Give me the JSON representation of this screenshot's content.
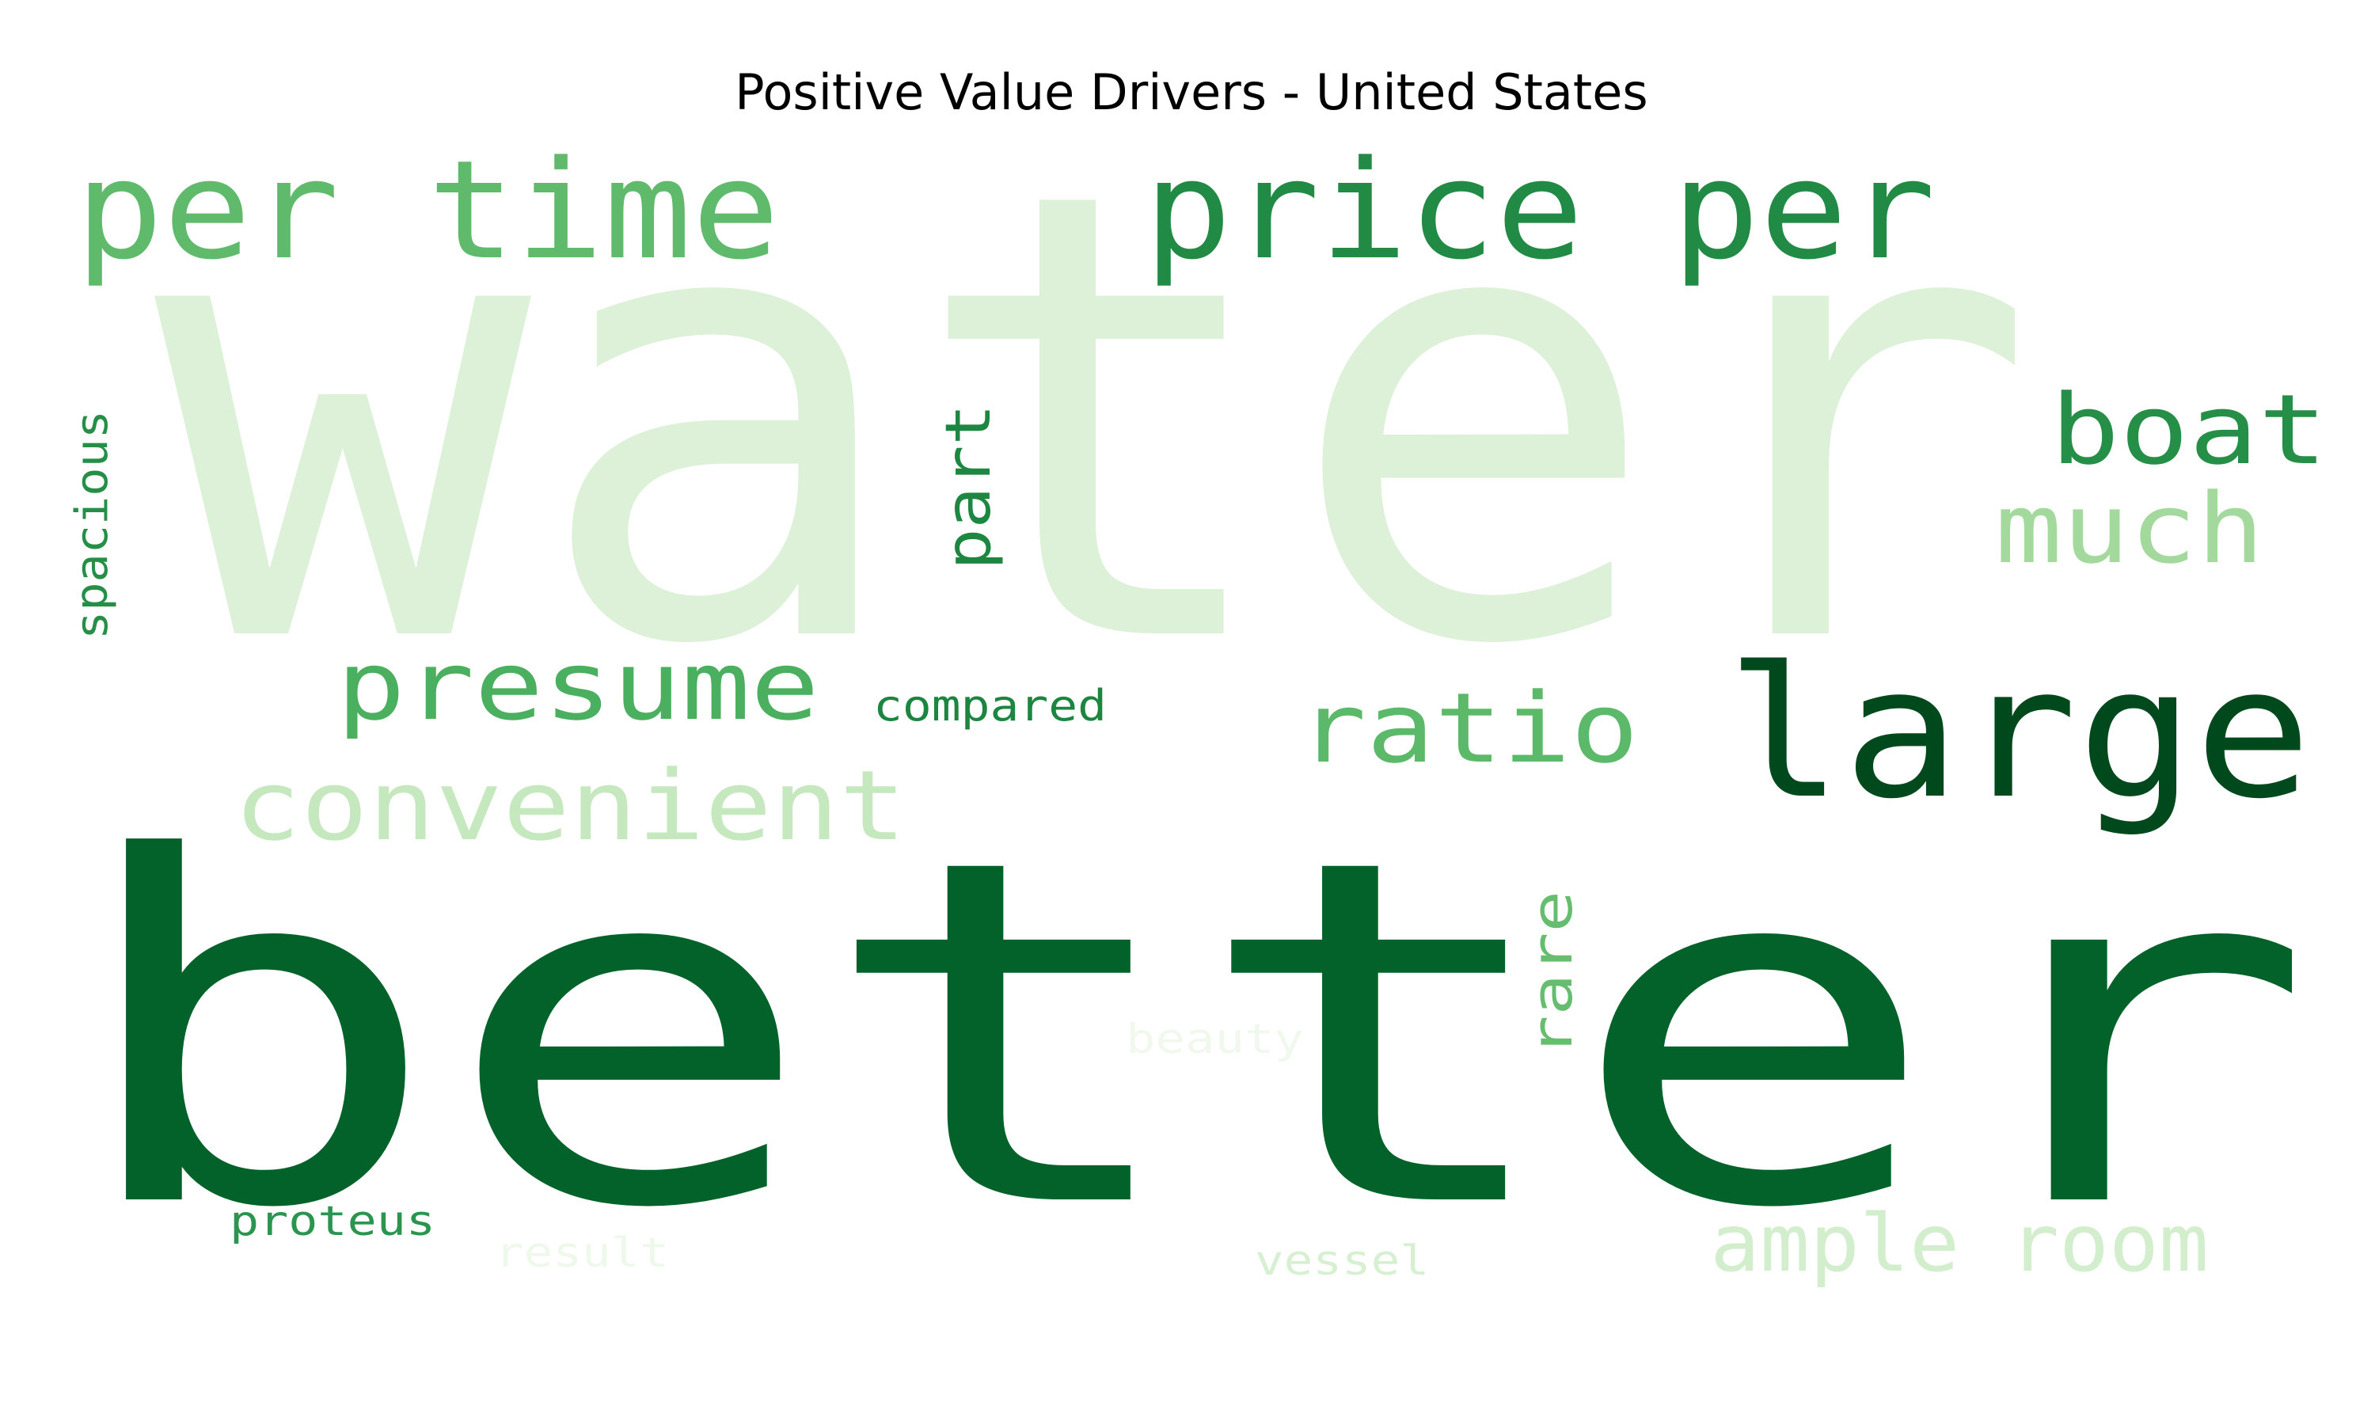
{
  "chart_data": {
    "type": "wordcloud",
    "title": "Positive Value Drivers - United States",
    "words": [
      {
        "text": "water",
        "color": "#dcf1d7"
      },
      {
        "text": "better",
        "color": "#03612a"
      },
      {
        "text": "per time",
        "color": "#60ba6c"
      },
      {
        "text": "price per",
        "color": "#218b45"
      },
      {
        "text": "large",
        "color": "#00491d"
      },
      {
        "text": "boat",
        "color": "#258e47"
      },
      {
        "text": "much",
        "color": "#a3d99c"
      },
      {
        "text": "presume",
        "color": "#4aaf5e"
      },
      {
        "text": "convenient",
        "color": "#c6e8bf"
      },
      {
        "text": "ratio",
        "color": "#5db96a"
      },
      {
        "text": "compared",
        "color": "#1c8540"
      },
      {
        "text": "part",
        "color": "#1d8741"
      },
      {
        "text": "spacious",
        "color": "#268f47"
      },
      {
        "text": "rare",
        "color": "#66bd6f"
      },
      {
        "text": "ample room",
        "color": "#d3eecd"
      },
      {
        "text": "proteus",
        "color": "#2b9550"
      },
      {
        "text": "result",
        "color": "#eef8eb"
      },
      {
        "text": "vessel",
        "color": "#d8f0d2"
      },
      {
        "text": "beauty",
        "color": "#f1f9ef"
      }
    ]
  }
}
